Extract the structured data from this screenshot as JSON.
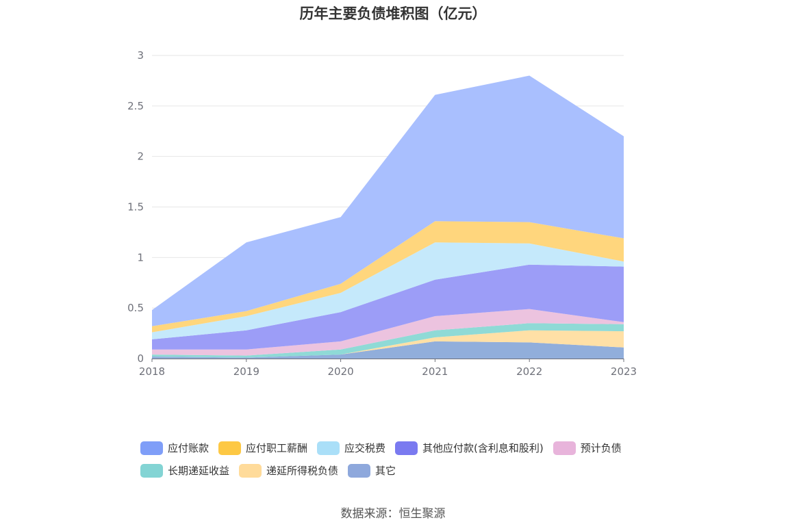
{
  "title": "历年主要负债堆积图（亿元）",
  "source": "数据来源：恒生聚源",
  "chart_data": {
    "type": "area",
    "stacked": true,
    "title": "历年主要负债堆积图（亿元）",
    "x": [
      "2018",
      "2019",
      "2020",
      "2021",
      "2022",
      "2023"
    ],
    "ylim": [
      0,
      3
    ],
    "yticks": [
      "0",
      "0.5",
      "1",
      "1.5",
      "2",
      "2.5",
      "3"
    ],
    "grid": true,
    "legend_position": "bottom",
    "series": [
      {
        "name": "其它",
        "color": "#91aedb",
        "values": [
          0.02,
          0.01,
          0.04,
          0.17,
          0.16,
          0.11
        ]
      },
      {
        "name": "递延所得税负债",
        "color": "#ffe0a6",
        "values": [
          0.0,
          0.0,
          0.0,
          0.04,
          0.12,
          0.16
        ]
      },
      {
        "name": "长期递延收益",
        "color": "#8fdad6",
        "values": [
          0.02,
          0.02,
          0.05,
          0.07,
          0.07,
          0.07
        ]
      },
      {
        "name": "预计负债",
        "color": "#ecc3df",
        "values": [
          0.05,
          0.06,
          0.08,
          0.14,
          0.14,
          0.02
        ]
      },
      {
        "name": "其他应付款(含利息和股利)",
        "color": "#9c9df7",
        "values": [
          0.1,
          0.19,
          0.29,
          0.36,
          0.44,
          0.55
        ]
      },
      {
        "name": "应交税费",
        "color": "#c5e9fb",
        "values": [
          0.07,
          0.14,
          0.19,
          0.37,
          0.21,
          0.05
        ]
      },
      {
        "name": "应付职工薪酬",
        "color": "#ffd67d",
        "values": [
          0.06,
          0.05,
          0.09,
          0.21,
          0.21,
          0.23
        ]
      },
      {
        "name": "应付账款",
        "color": "#a9bffe",
        "values": [
          0.16,
          0.68,
          0.66,
          1.25,
          1.45,
          1.01
        ]
      }
    ]
  },
  "legend": {
    "row1": [
      {
        "label": "应付账款",
        "color": "#7f9ef8"
      },
      {
        "label": "应付职工薪酬",
        "color": "#fdc844"
      },
      {
        "label": "应交税费",
        "color": "#aadff8"
      },
      {
        "label": "其他应付款(含利息和股利)",
        "color": "#7a7af0"
      },
      {
        "label": "预计负债",
        "color": "#e8b4db"
      }
    ],
    "row2": [
      {
        "label": "长期递延收益",
        "color": "#83d4d4"
      },
      {
        "label": "递延所得税负债",
        "color": "#ffdb9a"
      },
      {
        "label": "其它",
        "color": "#8ea8dc"
      }
    ]
  }
}
